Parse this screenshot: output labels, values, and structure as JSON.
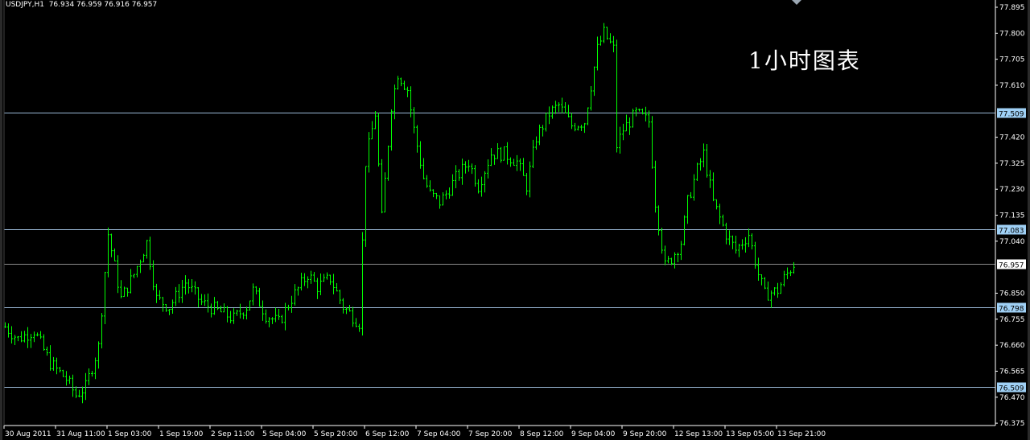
{
  "header": {
    "symbol": "USDJPY,H1",
    "ohlc": "76.934 76.959 76.916 76.957"
  },
  "annotation": "1小时图表",
  "colors": {
    "background": "#000000",
    "candle": "#00ff00",
    "grid_line": "#9ab8d6",
    "axis": "#ffffff",
    "label_box": "#9fd0f5"
  },
  "chart_data": {
    "type": "candlestick",
    "symbol": "USDJPY",
    "timeframe": "H1",
    "ylim": [
      76.375,
      77.895
    ],
    "y_ticks": [
      "77.895",
      "77.800",
      "77.705",
      "77.610",
      "77.420",
      "77.325",
      "77.230",
      "77.135",
      "77.040",
      "76.850",
      "76.755",
      "76.660",
      "76.565",
      "76.470",
      "76.375"
    ],
    "x_ticks": [
      "30 Aug 2011",
      "31 Aug 11:00",
      "1 Sep 03:00",
      "1 Sep 19:00",
      "2 Sep 11:00",
      "5 Sep 04:00",
      "5 Sep 20:00",
      "6 Sep 12:00",
      "7 Sep 04:00",
      "7 Sep 20:00",
      "8 Sep 12:00",
      "9 Sep 04:00",
      "9 Sep 20:00",
      "12 Sep 13:00",
      "13 Sep 05:00",
      "13 Sep 21:00"
    ],
    "horizontal_lines": [
      {
        "price": "77.509",
        "style": "level"
      },
      {
        "price": "77.083",
        "style": "level"
      },
      {
        "price": "76.957",
        "style": "current"
      },
      {
        "price": "76.798",
        "style": "level"
      },
      {
        "price": "76.509",
        "style": "level"
      }
    ],
    "close_path": [
      [
        0,
        76.727
      ],
      [
        4,
        76.683
      ],
      [
        9,
        76.713
      ],
      [
        14,
        76.595
      ],
      [
        19,
        76.536
      ],
      [
        22,
        76.477
      ],
      [
        25,
        76.507
      ],
      [
        29,
        76.654
      ],
      [
        32,
        77.066
      ],
      [
        36,
        76.83
      ],
      [
        40,
        76.919
      ],
      [
        44,
        77.036
      ],
      [
        47,
        76.83
      ],
      [
        51,
        76.801
      ],
      [
        56,
        76.889
      ],
      [
        61,
        76.816
      ],
      [
        66,
        76.786
      ],
      [
        71,
        76.757
      ],
      [
        75,
        76.801
      ],
      [
        77,
        76.86
      ],
      [
        81,
        76.771
      ],
      [
        85,
        76.742
      ],
      [
        89,
        76.83
      ],
      [
        94,
        76.919
      ],
      [
        97,
        76.874
      ],
      [
        101,
        76.904
      ],
      [
        105,
        76.801
      ],
      [
        110,
        76.742
      ],
      [
        111,
        77.036
      ],
      [
        112,
        77.33
      ],
      [
        115,
        77.507
      ],
      [
        117,
        77.124
      ],
      [
        120,
        77.536
      ],
      [
        122,
        77.654
      ],
      [
        125,
        77.595
      ],
      [
        127,
        77.448
      ],
      [
        130,
        77.271
      ],
      [
        132,
        77.213
      ],
      [
        135,
        77.183
      ],
      [
        137,
        77.213
      ],
      [
        140,
        77.271
      ],
      [
        144,
        77.33
      ],
      [
        147,
        77.242
      ],
      [
        151,
        77.36
      ],
      [
        155,
        77.36
      ],
      [
        159,
        77.33
      ],
      [
        162,
        77.242
      ],
      [
        165,
        77.419
      ],
      [
        169,
        77.507
      ],
      [
        172,
        77.536
      ],
      [
        176,
        77.463
      ],
      [
        180,
        77.477
      ],
      [
        184,
        77.742
      ],
      [
        186,
        77.801
      ],
      [
        189,
        77.742
      ],
      [
        190,
        77.389
      ],
      [
        192,
        77.448
      ],
      [
        196,
        77.507
      ],
      [
        200,
        77.477
      ],
      [
        202,
        77.183
      ],
      [
        205,
        76.948
      ],
      [
        207,
        76.977
      ],
      [
        210,
        77.036
      ],
      [
        212,
        77.183
      ],
      [
        215,
        77.301
      ],
      [
        217,
        77.36
      ],
      [
        220,
        77.183
      ],
      [
        224,
        77.066
      ],
      [
        227,
        77.007
      ],
      [
        231,
        77.066
      ],
      [
        234,
        76.919
      ],
      [
        236,
        76.845
      ],
      [
        240,
        76.86
      ],
      [
        242,
        76.904
      ],
      [
        245,
        76.957
      ]
    ]
  }
}
